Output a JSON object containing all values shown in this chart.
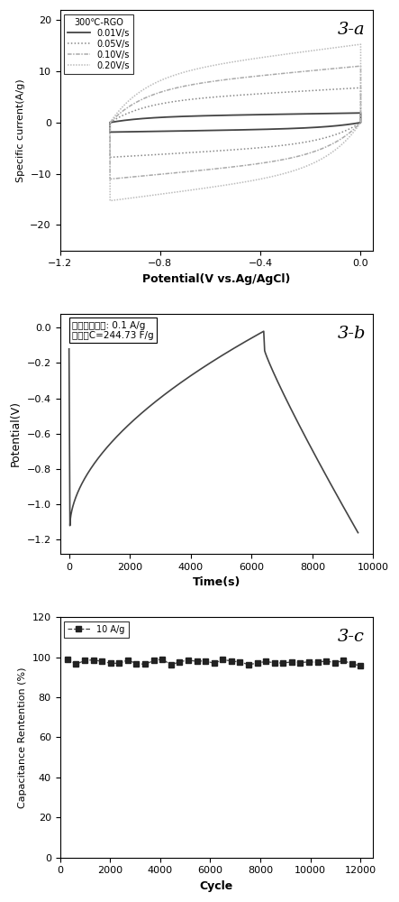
{
  "panel_a": {
    "title": "3-a",
    "xlabel": "Potential(V vs.Ag/AgCl)",
    "ylabel": "Specific current(A/g)",
    "xlim": [
      -1.2,
      0.05
    ],
    "ylim": [
      -25,
      22
    ],
    "yticks": [
      -20,
      -10,
      0,
      10,
      20
    ],
    "xticks": [
      -1.2,
      -0.8,
      -0.4,
      0.0
    ],
    "legend_title": "300℃-RGO",
    "series": [
      {
        "label": "0.01V/s",
        "style": "solid",
        "color": "#444444",
        "lw": 1.3,
        "amp": 2.2
      },
      {
        "label": "0.05V/s",
        "style": "dotted",
        "color": "#888888",
        "lw": 1.1,
        "amp": 8.0
      },
      {
        "label": "0.10V/s",
        "style": "dashdot",
        "color": "#aaaaaa",
        "lw": 1.1,
        "amp": 13.0
      },
      {
        "label": "0.20V/s",
        "style": "dotted2",
        "color": "#bbbbbb",
        "lw": 1.1,
        "amp": 18.0
      }
    ]
  },
  "panel_b": {
    "title": "3-b",
    "xlabel": "Time(s)",
    "ylabel": "Potential(V)",
    "xlim": [
      -300,
      10000
    ],
    "ylim": [
      -1.28,
      0.08
    ],
    "yticks": [
      0.0,
      -0.2,
      -0.4,
      -0.6,
      -0.8,
      -1.0,
      -1.2
    ],
    "xticks": [
      0,
      2000,
      4000,
      6000,
      8000,
      10000
    ],
    "ann1": "充放电流密度: 0.1 A/g",
    "ann2": "比电容C=244.73 F/g"
  },
  "panel_c": {
    "title": "3-c",
    "xlabel": "Cycle",
    "ylabel": "Capacitance Rentention (%)",
    "xlim": [
      0,
      12500
    ],
    "ylim": [
      0,
      120
    ],
    "yticks": [
      0,
      20,
      40,
      60,
      80,
      100,
      120
    ],
    "xticks": [
      0,
      2000,
      4000,
      6000,
      8000,
      10000,
      12000
    ],
    "legend_label": "10 A/g",
    "base_value": 98.0,
    "noise_amp": 1.5,
    "n_points": 35
  }
}
